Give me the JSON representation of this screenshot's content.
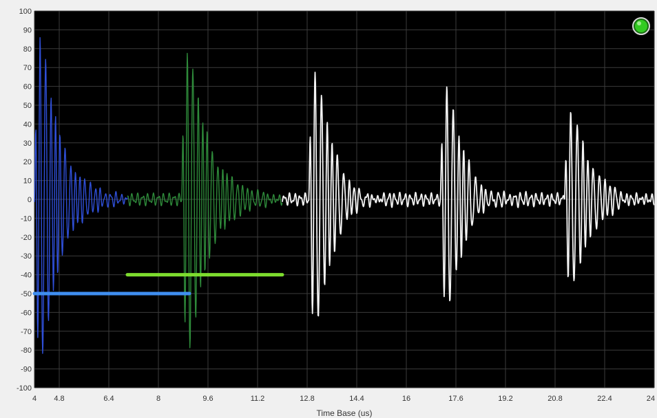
{
  "chart_data": {
    "type": "line",
    "title": "",
    "xlabel": "Time Base (us)",
    "ylabel": "",
    "xlim": [
      4,
      24
    ],
    "ylim": [
      -100,
      100
    ],
    "x_ticks": [
      4,
      4.8,
      6.4,
      8,
      9.6,
      11.2,
      12.8,
      14.4,
      16,
      17.6,
      19.2,
      20.8,
      22.4,
      24
    ],
    "x_tick_labels": [
      "4",
      "4.8",
      "6.4",
      "8",
      "9.6",
      "11.2",
      "12.8",
      "14.4",
      "16",
      "17.6",
      "19.2",
      "20.8",
      "22.4",
      "24"
    ],
    "y_ticks": [
      100,
      90,
      80,
      70,
      60,
      50,
      40,
      30,
      20,
      10,
      0,
      -10,
      -20,
      -30,
      -40,
      -50,
      -60,
      -70,
      -80,
      -90,
      -100
    ],
    "y_tick_labels": [
      "100",
      "90",
      "80",
      "70",
      "60",
      "50",
      "40",
      "30",
      "20",
      "10",
      "0",
      "-10",
      "-20",
      "-30",
      "-40",
      "-50",
      "-60",
      "-70",
      "-80",
      "-90",
      "-100"
    ],
    "grid": true,
    "colors": {
      "plot_background": "#000000",
      "grid": "#3c3c3c",
      "page_background": "#f0f0f0",
      "indicator": "#33cc22"
    },
    "series": [
      {
        "color": "#2f4fd8",
        "bursts": [
          {
            "t0": 4.0,
            "peak": 100,
            "decay": 0.55,
            "period": 0.16
          }
        ],
        "x": [
          4.0,
          7.0
        ]
      },
      {
        "color": "#2e8a3a",
        "bursts": [
          {
            "t0": 8.75,
            "peak": 90,
            "decay": 0.6,
            "period": 0.16
          }
        ],
        "x": [
          7.0,
          12.0
        ]
      },
      {
        "color": "#f4f4f4",
        "bursts": [
          {
            "t0": 12.85,
            "peak": 75,
            "decay": 0.55,
            "period": 0.18
          },
          {
            "t0": 17.1,
            "peak": 65,
            "decay": 0.55,
            "period": 0.18
          },
          {
            "t0": 21.1,
            "peak": 55,
            "decay": 0.55,
            "period": 0.18
          }
        ],
        "x": [
          12.0,
          24.0
        ]
      }
    ],
    "markers": [
      {
        "color": "#3f8ef0",
        "y": -50,
        "x_start": 4.0,
        "x_end": 9.0
      },
      {
        "color": "#7ddc2e",
        "y": -40,
        "x_start": 7.0,
        "x_end": 12.0
      }
    ],
    "indicator": "green-status-led"
  }
}
